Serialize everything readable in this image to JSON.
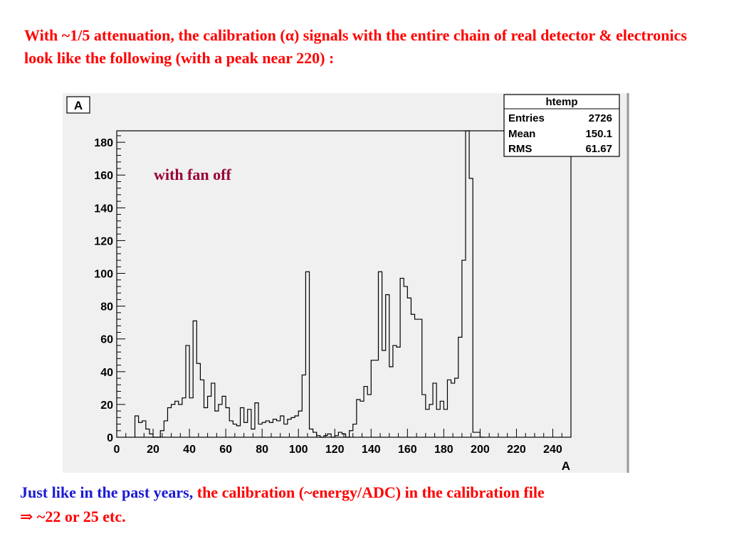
{
  "slide": {
    "title": "With ~1/5 attenuation, the calibration (α) signals with the entire chain of real detector & electronics look like the following (with a peak near 220) :",
    "footer_blue": "Just like in the past years,",
    "footer_red_1": " the calibration (~energy/ADC) in the calibration file",
    "footer_red_2": "⇒ ~22 or 25 etc."
  },
  "colors": {
    "title": "#ff0000",
    "footer_blue": "#1a1ad6",
    "annotation": "#990033",
    "canvas_bg": "#f0f0f0"
  },
  "chart_data": {
    "type": "bar",
    "style": "step-histogram",
    "title_box": "A",
    "xlabel": "A",
    "ylabel": "",
    "xlim": [
      0,
      250
    ],
    "ylim": [
      0,
      187
    ],
    "x_ticks": [
      0,
      20,
      40,
      60,
      80,
      100,
      120,
      140,
      160,
      180,
      200,
      220,
      240
    ],
    "y_ticks": [
      0,
      20,
      40,
      60,
      80,
      100,
      120,
      140,
      160,
      180
    ],
    "grid": false,
    "annotation": "with fan off",
    "stats": {
      "title": "htemp",
      "rows": [
        {
          "label": "Entries",
          "value": "2726"
        },
        {
          "label": "Mean",
          "value": "150.1"
        },
        {
          "label": "RMS",
          "value": "61.67"
        }
      ]
    },
    "bins": [
      {
        "x0": 10,
        "x1": 12,
        "y": 13
      },
      {
        "x0": 12,
        "x1": 14,
        "y": 9
      },
      {
        "x0": 14,
        "x1": 16,
        "y": 10
      },
      {
        "x0": 16,
        "x1": 18,
        "y": 5
      },
      {
        "x0": 18,
        "x1": 20,
        "y": 2
      },
      {
        "x0": 20,
        "x1": 22,
        "y": 0
      },
      {
        "x0": 22,
        "x1": 24,
        "y": 0
      },
      {
        "x0": 24,
        "x1": 26,
        "y": 4
      },
      {
        "x0": 26,
        "x1": 28,
        "y": 10
      },
      {
        "x0": 28,
        "x1": 30,
        "y": 18
      },
      {
        "x0": 30,
        "x1": 32,
        "y": 20
      },
      {
        "x0": 32,
        "x1": 34,
        "y": 22
      },
      {
        "x0": 34,
        "x1": 36,
        "y": 20
      },
      {
        "x0": 36,
        "x1": 38,
        "y": 24
      },
      {
        "x0": 38,
        "x1": 40,
        "y": 56
      },
      {
        "x0": 40,
        "x1": 42,
        "y": 24
      },
      {
        "x0": 42,
        "x1": 44,
        "y": 71
      },
      {
        "x0": 44,
        "x1": 46,
        "y": 45
      },
      {
        "x0": 46,
        "x1": 48,
        "y": 35
      },
      {
        "x0": 48,
        "x1": 50,
        "y": 18
      },
      {
        "x0": 50,
        "x1": 52,
        "y": 25
      },
      {
        "x0": 52,
        "x1": 54,
        "y": 33
      },
      {
        "x0": 54,
        "x1": 56,
        "y": 16
      },
      {
        "x0": 56,
        "x1": 58,
        "y": 20
      },
      {
        "x0": 58,
        "x1": 60,
        "y": 25
      },
      {
        "x0": 60,
        "x1": 62,
        "y": 18
      },
      {
        "x0": 62,
        "x1": 64,
        "y": 10
      },
      {
        "x0": 64,
        "x1": 66,
        "y": 8
      },
      {
        "x0": 66,
        "x1": 68,
        "y": 7
      },
      {
        "x0": 68,
        "x1": 70,
        "y": 18
      },
      {
        "x0": 70,
        "x1": 72,
        "y": 9
      },
      {
        "x0": 72,
        "x1": 74,
        "y": 17
      },
      {
        "x0": 74,
        "x1": 76,
        "y": 5
      },
      {
        "x0": 76,
        "x1": 78,
        "y": 21
      },
      {
        "x0": 78,
        "x1": 80,
        "y": 8
      },
      {
        "x0": 80,
        "x1": 82,
        "y": 9
      },
      {
        "x0": 82,
        "x1": 84,
        "y": 10
      },
      {
        "x0": 84,
        "x1": 86,
        "y": 9
      },
      {
        "x0": 86,
        "x1": 88,
        "y": 11
      },
      {
        "x0": 88,
        "x1": 90,
        "y": 10
      },
      {
        "x0": 90,
        "x1": 92,
        "y": 13
      },
      {
        "x0": 92,
        "x1": 94,
        "y": 8
      },
      {
        "x0": 94,
        "x1": 96,
        "y": 11
      },
      {
        "x0": 96,
        "x1": 98,
        "y": 12
      },
      {
        "x0": 98,
        "x1": 100,
        "y": 13
      },
      {
        "x0": 100,
        "x1": 102,
        "y": 16
      },
      {
        "x0": 102,
        "x1": 104,
        "y": 38
      },
      {
        "x0": 104,
        "x1": 106,
        "y": 101
      },
      {
        "x0": 106,
        "x1": 108,
        "y": 5
      },
      {
        "x0": 108,
        "x1": 110,
        "y": 3
      },
      {
        "x0": 110,
        "x1": 112,
        "y": 1
      },
      {
        "x0": 112,
        "x1": 114,
        "y": 0
      },
      {
        "x0": 114,
        "x1": 116,
        "y": 1
      },
      {
        "x0": 116,
        "x1": 118,
        "y": 2
      },
      {
        "x0": 118,
        "x1": 120,
        "y": 0
      },
      {
        "x0": 120,
        "x1": 122,
        "y": 1
      },
      {
        "x0": 122,
        "x1": 124,
        "y": 3
      },
      {
        "x0": 124,
        "x1": 126,
        "y": 2
      },
      {
        "x0": 126,
        "x1": 128,
        "y": 0
      },
      {
        "x0": 128,
        "x1": 130,
        "y": 4
      },
      {
        "x0": 130,
        "x1": 132,
        "y": 8
      },
      {
        "x0": 132,
        "x1": 134,
        "y": 23
      },
      {
        "x0": 134,
        "x1": 136,
        "y": 22
      },
      {
        "x0": 136,
        "x1": 138,
        "y": 31
      },
      {
        "x0": 138,
        "x1": 140,
        "y": 26
      },
      {
        "x0": 140,
        "x1": 142,
        "y": 47
      },
      {
        "x0": 142,
        "x1": 144,
        "y": 47
      },
      {
        "x0": 144,
        "x1": 146,
        "y": 101
      },
      {
        "x0": 146,
        "x1": 148,
        "y": 53
      },
      {
        "x0": 148,
        "x1": 150,
        "y": 87
      },
      {
        "x0": 150,
        "x1": 152,
        "y": 43
      },
      {
        "x0": 152,
        "x1": 154,
        "y": 56
      },
      {
        "x0": 154,
        "x1": 156,
        "y": 55
      },
      {
        "x0": 156,
        "x1": 158,
        "y": 97
      },
      {
        "x0": 158,
        "x1": 160,
        "y": 92
      },
      {
        "x0": 160,
        "x1": 162,
        "y": 85
      },
      {
        "x0": 162,
        "x1": 164,
        "y": 75
      },
      {
        "x0": 164,
        "x1": 166,
        "y": 72
      },
      {
        "x0": 166,
        "x1": 168,
        "y": 72
      },
      {
        "x0": 168,
        "x1": 170,
        "y": 26
      },
      {
        "x0": 170,
        "x1": 172,
        "y": 17
      },
      {
        "x0": 172,
        "x1": 174,
        "y": 20
      },
      {
        "x0": 174,
        "x1": 176,
        "y": 33
      },
      {
        "x0": 176,
        "x1": 178,
        "y": 17
      },
      {
        "x0": 178,
        "x1": 180,
        "y": 22
      },
      {
        "x0": 180,
        "x1": 182,
        "y": 17
      },
      {
        "x0": 182,
        "x1": 184,
        "y": 35
      },
      {
        "x0": 184,
        "x1": 186,
        "y": 33
      },
      {
        "x0": 186,
        "x1": 188,
        "y": 36
      },
      {
        "x0": 188,
        "x1": 190,
        "y": 61
      },
      {
        "x0": 190,
        "x1": 192,
        "y": 108
      },
      {
        "x0": 192,
        "x1": 194,
        "y": 187
      },
      {
        "x0": 194,
        "x1": 196,
        "y": 158
      },
      {
        "x0": 196,
        "x1": 198,
        "y": 3
      },
      {
        "x0": 198,
        "x1": 200,
        "y": 3
      },
      {
        "x0": 200,
        "x1": 202,
        "y": 0
      }
    ]
  }
}
